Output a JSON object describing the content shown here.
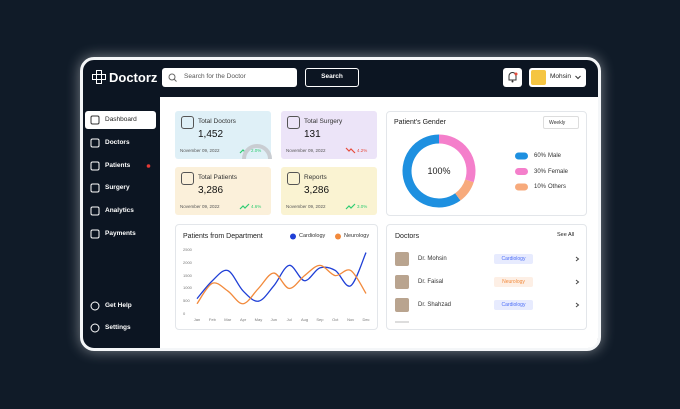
{
  "header": {
    "logo": "Doctorz",
    "search_placeholder": "Search for the Doctor",
    "search_button": "Search",
    "user": "Mohsin"
  },
  "sidebar": {
    "items": [
      "Dashboard",
      "Doctors",
      "Patients",
      "Surgery",
      "Analytics",
      "Payments"
    ],
    "footer": [
      "Get Help",
      "Settings"
    ]
  },
  "stats": [
    {
      "label": "Total Doctors",
      "value": "1,452",
      "date": "November 09, 2022",
      "change": "2.0%",
      "color": "#2ecc71"
    },
    {
      "label": "Total Surgery",
      "value": "131",
      "date": "November 09, 2022",
      "change": "4.2%",
      "color": "#e74c3c"
    },
    {
      "label": "Total Patients",
      "value": "3,286",
      "date": "November 09, 2022",
      "change": "4.6%",
      "color": "#2ecc71"
    },
    {
      "label": "Reports",
      "value": "3,286",
      "date": "November 09, 2022",
      "change": "3.0%",
      "color": "#2ecc71"
    }
  ],
  "gender_chart": {
    "type": "pie",
    "title": "Patient's Gender",
    "filter": "Weekly",
    "center_label": "100%",
    "categories": [
      "Male",
      "Female",
      "Others"
    ],
    "values": [
      60,
      30,
      10
    ],
    "value_labels": [
      "60%",
      "30%",
      "10%"
    ],
    "colors": [
      "#1e90e0",
      "#f47fcb",
      "#f7aa7c"
    ]
  },
  "department_chart": {
    "type": "line",
    "title": "Patients from Department",
    "categories": [
      "Jan",
      "Feb",
      "Mar",
      "Apr",
      "May",
      "Jun",
      "Jul",
      "Aug",
      "Sep",
      "Oct",
      "Nov",
      "Dec"
    ],
    "series": [
      {
        "name": "Cardiology",
        "color": "#1f3fd6",
        "values": [
          600,
          1300,
          1700,
          900,
          500,
          1100,
          1900,
          1300,
          1800,
          1700,
          1100,
          2400
        ]
      },
      {
        "name": "Neurology",
        "color": "#f28a3c",
        "values": [
          400,
          1200,
          900,
          400,
          1000,
          1600,
          1000,
          1500,
          1900,
          1500,
          1700,
          800
        ]
      }
    ],
    "ylim": [
      0,
      2500
    ],
    "yticks": [
      0,
      500,
      1000,
      1500,
      2000,
      2500
    ]
  },
  "doctors": {
    "title": "Doctors",
    "link": "See All",
    "rows": [
      {
        "name": "Dr. Mohsin",
        "department": "Cardiology",
        "color": "#4a6cf7"
      },
      {
        "name": "Dr. Faisal",
        "department": "Neurology",
        "color": "#f28a3c"
      },
      {
        "name": "Dr. Shahzad",
        "department": "Cardiology",
        "color": "#4a6cf7"
      }
    ]
  }
}
